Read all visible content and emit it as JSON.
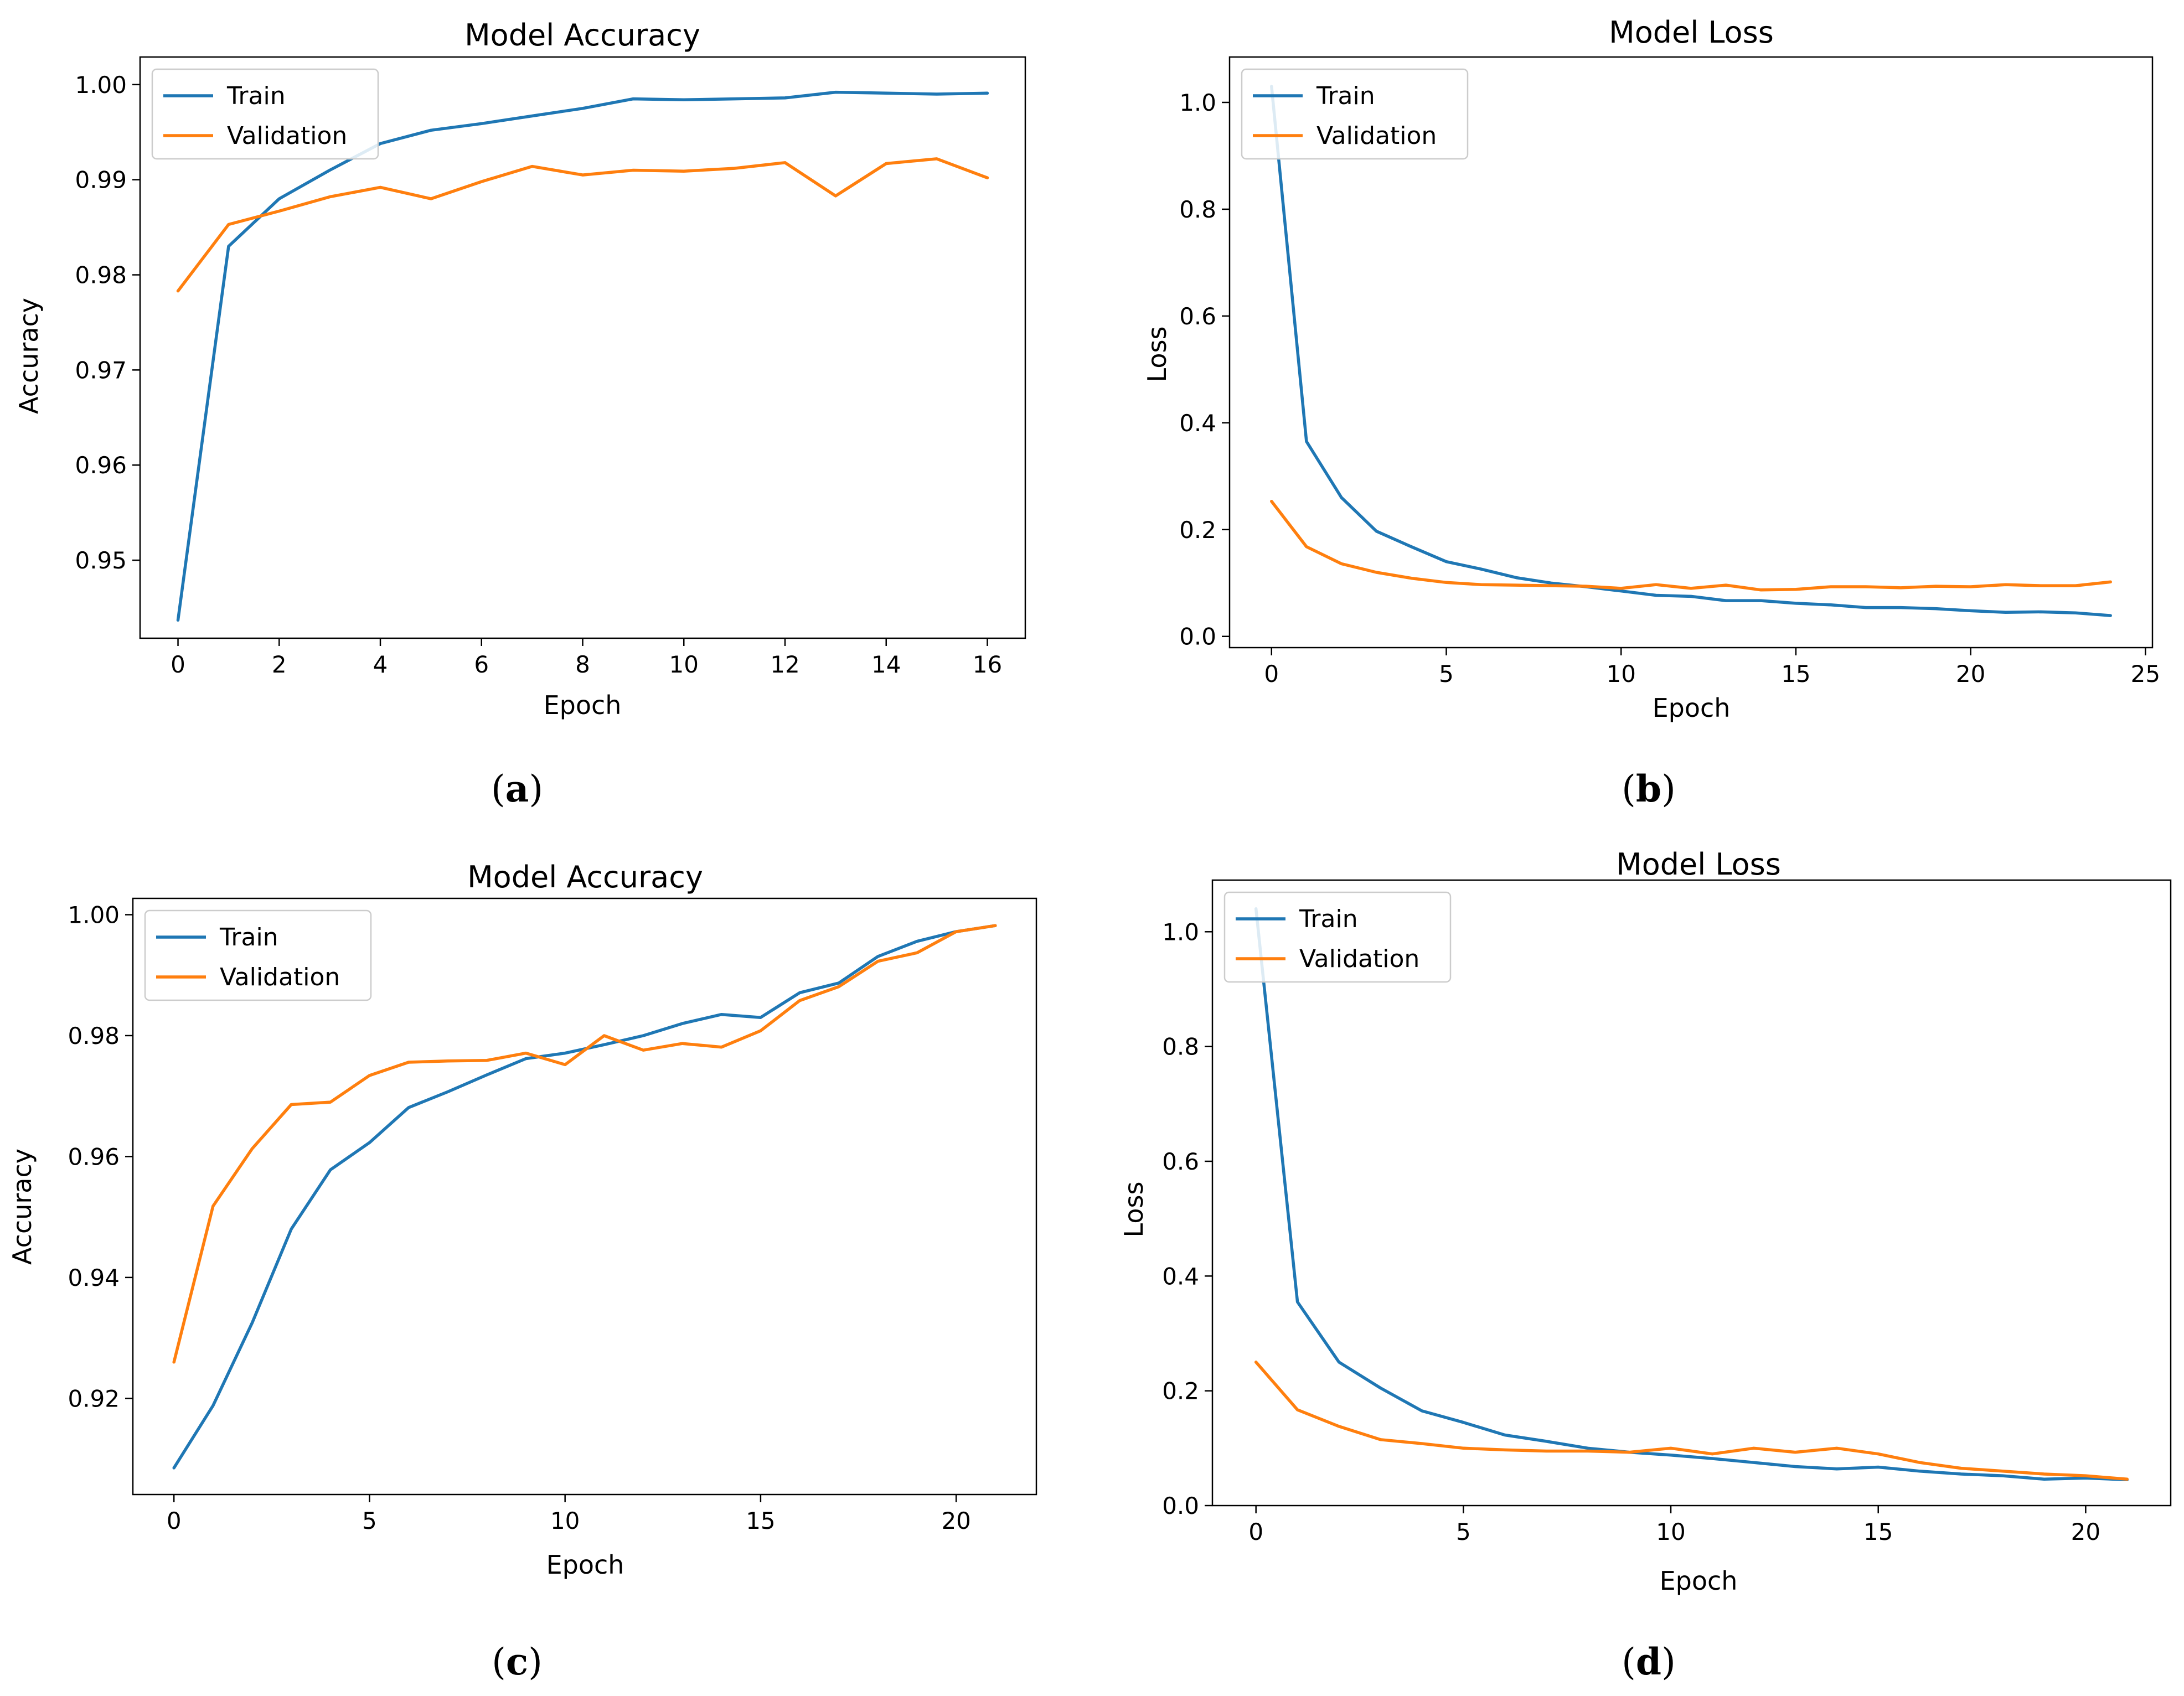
{
  "colors": {
    "train": "#1f77b4",
    "validation": "#ff7f0e",
    "axis": "#000000",
    "legend_border": "#cccccc"
  },
  "chart_data": [
    {
      "type": "line",
      "panel": "a",
      "title": "Model Accuracy",
      "xlabel": "Epoch",
      "ylabel": "Accuracy",
      "xlim": [
        -0.75,
        16.75
      ],
      "ylim": [
        0.9418,
        1.0029
      ],
      "xticks": [
        0,
        2,
        4,
        6,
        8,
        10,
        12,
        14,
        16
      ],
      "xtick_labels": [
        "0",
        "2",
        "4",
        "6",
        "8",
        "10",
        "12",
        "14",
        "16"
      ],
      "yticks": [
        0.95,
        0.96,
        0.97,
        0.98,
        0.99,
        1.0
      ],
      "ytick_labels": [
        "0.95",
        "0.96",
        "0.97",
        "0.98",
        "0.99",
        "1.00"
      ],
      "legend_location": "upper left",
      "series": [
        {
          "name": "Train",
          "x": [
            0,
            1,
            2,
            3,
            4,
            5,
            6,
            7,
            8,
            9,
            10,
            11,
            12,
            13,
            14,
            15,
            16
          ],
          "values": [
            0.9437,
            0.983,
            0.988,
            0.991,
            0.9938,
            0.9952,
            0.9959,
            0.9967,
            0.9975,
            0.9985,
            0.9984,
            0.9985,
            0.9986,
            0.9992,
            0.9991,
            0.999,
            0.9991
          ]
        },
        {
          "name": "Validation",
          "x": [
            0,
            1,
            2,
            3,
            4,
            5,
            6,
            7,
            8,
            9,
            10,
            11,
            12,
            13,
            14,
            15,
            16
          ],
          "values": [
            0.9783,
            0.9853,
            0.9867,
            0.9882,
            0.9892,
            0.988,
            0.9898,
            0.9914,
            0.9905,
            0.991,
            0.9909,
            0.9912,
            0.9918,
            0.9883,
            0.9917,
            0.9922,
            0.9902
          ]
        }
      ]
    },
    {
      "type": "line",
      "panel": "b",
      "title": "Model Loss",
      "xlabel": "Epoch",
      "ylabel": "Loss",
      "xlim": [
        -1.2,
        25.2
      ],
      "ylim": [
        -0.021,
        1.085
      ],
      "xticks": [
        0,
        5,
        10,
        15,
        20,
        25
      ],
      "xtick_labels": [
        "0",
        "5",
        "10",
        "15",
        "20",
        "25"
      ],
      "yticks": [
        0.0,
        0.2,
        0.4,
        0.6,
        0.8,
        1.0
      ],
      "ytick_labels": [
        "0.0",
        "0.2",
        "0.4",
        "0.6",
        "0.8",
        "1.0"
      ],
      "legend_location": "upper left",
      "series": [
        {
          "name": "Train",
          "x": [
            0,
            1,
            2,
            3,
            4,
            5,
            6,
            7,
            8,
            9,
            10,
            11,
            12,
            13,
            14,
            15,
            16,
            17,
            18,
            19,
            20,
            21,
            22,
            23,
            24
          ],
          "values": [
            1.03,
            0.365,
            0.26,
            0.197,
            0.168,
            0.14,
            0.126,
            0.11,
            0.1,
            0.093,
            0.085,
            0.077,
            0.075,
            0.067,
            0.067,
            0.062,
            0.059,
            0.054,
            0.054,
            0.052,
            0.048,
            0.045,
            0.046,
            0.044,
            0.039
          ]
        },
        {
          "name": "Validation",
          "x": [
            0,
            1,
            2,
            3,
            4,
            5,
            6,
            7,
            8,
            9,
            10,
            11,
            12,
            13,
            14,
            15,
            16,
            17,
            18,
            19,
            20,
            21,
            22,
            23,
            24
          ],
          "values": [
            0.253,
            0.168,
            0.136,
            0.12,
            0.109,
            0.101,
            0.097,
            0.096,
            0.095,
            0.094,
            0.09,
            0.097,
            0.09,
            0.096,
            0.087,
            0.088,
            0.093,
            0.093,
            0.091,
            0.094,
            0.093,
            0.097,
            0.095,
            0.095,
            0.102
          ]
        }
      ]
    },
    {
      "type": "line",
      "panel": "c",
      "title": "Model Accuracy",
      "xlabel": "Epoch",
      "ylabel": "Accuracy",
      "xlim": [
        -1.05,
        22.05
      ],
      "ylim": [
        0.9041,
        1.0027
      ],
      "xticks": [
        0,
        5,
        10,
        15,
        20
      ],
      "xtick_labels": [
        "0",
        "5",
        "10",
        "15",
        "20"
      ],
      "yticks": [
        0.92,
        0.94,
        0.96,
        0.98,
        1.0
      ],
      "ytick_labels": [
        "0.92",
        "0.94",
        "0.96",
        "0.98",
        "1.00"
      ],
      "legend_location": "upper left",
      "series": [
        {
          "name": "Train",
          "x": [
            0,
            1,
            2,
            3,
            4,
            5,
            6,
            7,
            8,
            9,
            10,
            11,
            12,
            13,
            14,
            15,
            16,
            17,
            18,
            19,
            20,
            21
          ],
          "values": [
            0.9085,
            0.9188,
            0.9325,
            0.948,
            0.9578,
            0.9623,
            0.9681,
            0.9707,
            0.9735,
            0.9762,
            0.9771,
            0.9785,
            0.98,
            0.982,
            0.9835,
            0.983,
            0.9871,
            0.9887,
            0.9931,
            0.9956,
            0.9972,
            0.9982
          ]
        },
        {
          "name": "Validation",
          "x": [
            0,
            1,
            2,
            3,
            4,
            5,
            6,
            7,
            8,
            9,
            10,
            11,
            12,
            13,
            14,
            15,
            16,
            17,
            18,
            19,
            20,
            21
          ],
          "values": [
            0.926,
            0.9518,
            0.9613,
            0.9686,
            0.969,
            0.9734,
            0.9756,
            0.9758,
            0.9759,
            0.9771,
            0.9752,
            0.98,
            0.9776,
            0.9787,
            0.9781,
            0.9808,
            0.9858,
            0.9881,
            0.9923,
            0.9937,
            0.9972,
            0.9982
          ]
        }
      ]
    },
    {
      "type": "line",
      "panel": "d",
      "title": "Model Loss",
      "xlabel": "Epoch",
      "ylabel": "Loss",
      "xlim": [
        -1.05,
        22.05
      ],
      "ylim": [
        0.0,
        1.09
      ],
      "xticks": [
        0,
        5,
        10,
        15,
        20
      ],
      "xtick_labels": [
        "0",
        "5",
        "10",
        "15",
        "20"
      ],
      "yticks": [
        0.0,
        0.2,
        0.4,
        0.6,
        0.8,
        1.0
      ],
      "ytick_labels": [
        "0.0",
        "0.2",
        "0.4",
        "0.6",
        "0.8",
        "1.0"
      ],
      "legend_location": "upper left",
      "series": [
        {
          "name": "Train",
          "x": [
            0,
            1,
            2,
            3,
            4,
            5,
            6,
            7,
            8,
            9,
            10,
            11,
            12,
            13,
            14,
            15,
            16,
            17,
            18,
            19,
            20,
            21
          ],
          "values": [
            1.04,
            0.355,
            0.25,
            0.205,
            0.165,
            0.145,
            0.123,
            0.112,
            0.1,
            0.093,
            0.088,
            0.082,
            0.075,
            0.068,
            0.064,
            0.067,
            0.06,
            0.055,
            0.052,
            0.046,
            0.048,
            0.045
          ]
        },
        {
          "name": "Validation",
          "x": [
            0,
            1,
            2,
            3,
            4,
            5,
            6,
            7,
            8,
            9,
            10,
            11,
            12,
            13,
            14,
            15,
            16,
            17,
            18,
            19,
            20,
            21
          ],
          "values": [
            0.25,
            0.167,
            0.138,
            0.115,
            0.108,
            0.1,
            0.097,
            0.095,
            0.095,
            0.093,
            0.1,
            0.09,
            0.1,
            0.093,
            0.1,
            0.09,
            0.075,
            0.065,
            0.06,
            0.055,
            0.052,
            0.046
          ]
        }
      ]
    }
  ],
  "panel_labels": [
    "a",
    "b",
    "c",
    "d"
  ]
}
